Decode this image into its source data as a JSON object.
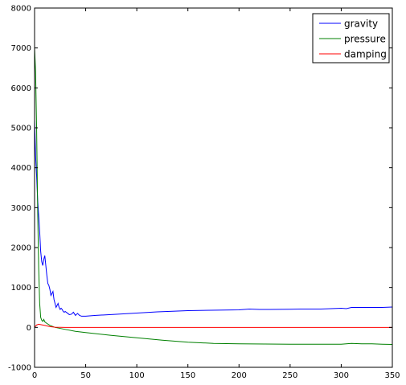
{
  "chart_data": {
    "type": "line",
    "title": "",
    "xlabel": "",
    "ylabel": "",
    "xlim": [
      0,
      350
    ],
    "ylim": [
      -1000,
      8000
    ],
    "xticks": [
      0,
      50,
      100,
      150,
      200,
      250,
      300,
      350
    ],
    "yticks": [
      -1000,
      0,
      1000,
      2000,
      3000,
      4000,
      5000,
      6000,
      7000,
      8000
    ],
    "grid": false,
    "legend_position": "top-right",
    "series": [
      {
        "name": "gravity",
        "color": "#0000ff",
        "points": [
          [
            0,
            5200
          ],
          [
            1,
            4300
          ],
          [
            2,
            3800
          ],
          [
            3,
            3200
          ],
          [
            4,
            2800
          ],
          [
            5,
            2400
          ],
          [
            6,
            1900
          ],
          [
            7,
            1650
          ],
          [
            8,
            1550
          ],
          [
            9,
            1700
          ],
          [
            10,
            1800
          ],
          [
            11,
            1550
          ],
          [
            12,
            1300
          ],
          [
            13,
            1100
          ],
          [
            14,
            1050
          ],
          [
            15,
            950
          ],
          [
            16,
            800
          ],
          [
            17,
            850
          ],
          [
            18,
            900
          ],
          [
            19,
            700
          ],
          [
            20,
            600
          ],
          [
            21,
            500
          ],
          [
            22,
            550
          ],
          [
            23,
            600
          ],
          [
            24,
            500
          ],
          [
            25,
            450
          ],
          [
            26,
            480
          ],
          [
            27,
            450
          ],
          [
            28,
            400
          ],
          [
            29,
            380
          ],
          [
            30,
            400
          ],
          [
            32,
            360
          ],
          [
            34,
            320
          ],
          [
            36,
            330
          ],
          [
            38,
            380
          ],
          [
            40,
            300
          ],
          [
            42,
            350
          ],
          [
            44,
            300
          ],
          [
            46,
            280
          ],
          [
            50,
            280
          ],
          [
            60,
            300
          ],
          [
            80,
            330
          ],
          [
            100,
            360
          ],
          [
            120,
            390
          ],
          [
            150,
            420
          ],
          [
            200,
            440
          ],
          [
            210,
            460
          ],
          [
            220,
            450
          ],
          [
            230,
            450
          ],
          [
            250,
            455
          ],
          [
            260,
            460
          ],
          [
            270,
            460
          ],
          [
            280,
            460
          ],
          [
            290,
            470
          ],
          [
            300,
            480
          ],
          [
            305,
            470
          ],
          [
            310,
            500
          ],
          [
            320,
            500
          ],
          [
            330,
            500
          ],
          [
            340,
            500
          ],
          [
            350,
            510
          ]
        ]
      },
      {
        "name": "pressure",
        "color": "#008000",
        "points": [
          [
            0,
            7000
          ],
          [
            1,
            6400
          ],
          [
            2,
            5000
          ],
          [
            3,
            3000
          ],
          [
            4,
            1500
          ],
          [
            5,
            600
          ],
          [
            6,
            250
          ],
          [
            7,
            180
          ],
          [
            8,
            150
          ],
          [
            9,
            200
          ],
          [
            10,
            140
          ],
          [
            12,
            100
          ],
          [
            15,
            50
          ],
          [
            20,
            0
          ],
          [
            30,
            -50
          ],
          [
            40,
            -100
          ],
          [
            50,
            -130
          ],
          [
            75,
            -200
          ],
          [
            100,
            -260
          ],
          [
            125,
            -320
          ],
          [
            150,
            -370
          ],
          [
            175,
            -400
          ],
          [
            200,
            -410
          ],
          [
            250,
            -420
          ],
          [
            300,
            -420
          ],
          [
            305,
            -410
          ],
          [
            310,
            -400
          ],
          [
            320,
            -410
          ],
          [
            330,
            -410
          ],
          [
            340,
            -420
          ],
          [
            350,
            -425
          ]
        ]
      },
      {
        "name": "damping",
        "color": "#ff0000",
        "points": [
          [
            0,
            0
          ],
          [
            2,
            60
          ],
          [
            4,
            80
          ],
          [
            6,
            70
          ],
          [
            8,
            60
          ],
          [
            10,
            50
          ],
          [
            15,
            20
          ],
          [
            20,
            5
          ],
          [
            30,
            0
          ],
          [
            100,
            0
          ],
          [
            200,
            0
          ],
          [
            300,
            0
          ],
          [
            350,
            0
          ]
        ]
      }
    ]
  }
}
